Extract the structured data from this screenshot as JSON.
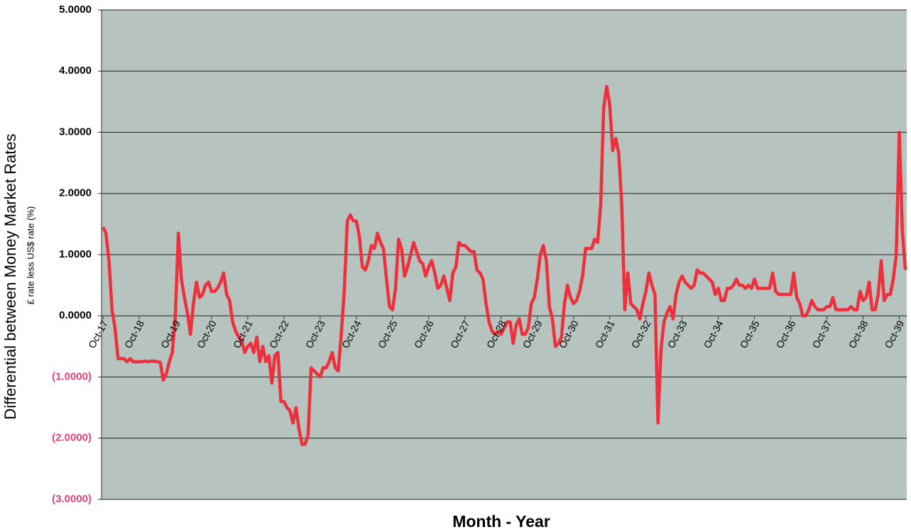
{
  "chart_data": {
    "type": "line",
    "y_axis_label": "Differential between Money Market Rates",
    "y_axis_sublabel": "£ rate less US$ rate (%)",
    "x_axis_label": "Month - Year",
    "categories": [
      "Oct-17",
      null,
      null,
      null,
      null,
      null,
      null,
      null,
      null,
      null,
      null,
      null,
      "Oct-18",
      null,
      null,
      null,
      null,
      null,
      null,
      null,
      null,
      null,
      null,
      null,
      "Oct-19",
      null,
      null,
      null,
      null,
      null,
      null,
      null,
      null,
      null,
      null,
      null,
      "Oct-20",
      null,
      null,
      null,
      null,
      null,
      null,
      null,
      null,
      null,
      null,
      null,
      "Oct-21",
      null,
      null,
      null,
      null,
      null,
      null,
      null,
      null,
      null,
      null,
      null,
      "Oct-22",
      null,
      null,
      null,
      null,
      null,
      null,
      null,
      null,
      null,
      null,
      null,
      "Oct-23",
      null,
      null,
      null,
      null,
      null,
      null,
      null,
      null,
      null,
      null,
      null,
      "Oct-24",
      null,
      null,
      null,
      null,
      null,
      null,
      null,
      null,
      null,
      null,
      null,
      "Oct-25",
      null,
      null,
      null,
      null,
      null,
      null,
      null,
      null,
      null,
      null,
      null,
      "Oct-26",
      null,
      null,
      null,
      null,
      null,
      null,
      null,
      null,
      null,
      null,
      null,
      "Oct-27",
      null,
      null,
      null,
      null,
      null,
      null,
      null,
      null,
      null,
      null,
      null,
      "Oct-28",
      null,
      null,
      null,
      null,
      null,
      null,
      null,
      null,
      null,
      null,
      null,
      "Oct-29",
      null,
      null,
      null,
      null,
      null,
      null,
      null,
      null,
      null,
      null,
      null,
      "Oct-30",
      null,
      null,
      null,
      null,
      null,
      null,
      null,
      null,
      null,
      null,
      null,
      "Oct-31",
      null,
      null,
      null,
      null,
      null,
      null,
      null,
      null,
      null,
      null,
      null,
      "Oct-32",
      null,
      null,
      null,
      null,
      null,
      null,
      null,
      null,
      null,
      null,
      null,
      "Oct-33",
      null,
      null,
      null,
      null,
      null,
      null,
      null,
      null,
      null,
      null,
      null,
      "Oct-34",
      null,
      null,
      null,
      null,
      null,
      null,
      null,
      null,
      null,
      null,
      null,
      "Oct-35",
      null,
      null,
      null,
      null,
      null,
      null,
      null,
      null,
      null,
      null,
      null,
      "Oct-36",
      null,
      null,
      null,
      null,
      null,
      null,
      null,
      null,
      null,
      null,
      null,
      "Oct-37",
      null,
      null,
      null,
      null,
      null,
      null,
      null,
      null,
      null,
      null,
      null,
      "Oct-38",
      null,
      null,
      null,
      null,
      null,
      null,
      null,
      null,
      null,
      null,
      null,
      "Oct-39",
      null,
      null
    ],
    "series": [
      {
        "name": "Differential",
        "color": "#ee2f3c",
        "values": [
          1.45,
          1.35,
          0.9,
          0.1,
          -0.2,
          -0.7,
          -0.7,
          -0.7,
          -0.75,
          -0.7,
          -0.75,
          -0.75,
          -0.75,
          -0.75,
          -0.74,
          -0.75,
          -0.74,
          -0.74,
          -0.75,
          -0.76,
          -1.05,
          -0.95,
          -0.75,
          -0.6,
          0.0,
          1.35,
          0.6,
          0.3,
          0.05,
          -0.3,
          0.2,
          0.55,
          0.3,
          0.35,
          0.5,
          0.55,
          0.4,
          0.4,
          0.45,
          0.55,
          0.7,
          0.35,
          0.25,
          -0.1,
          -0.25,
          -0.35,
          -0.4,
          -0.6,
          -0.5,
          -0.45,
          -0.6,
          -0.35,
          -0.75,
          -0.5,
          -0.75,
          -0.65,
          -1.1,
          -0.65,
          -0.6,
          -1.4,
          -1.4,
          -1.5,
          -1.55,
          -1.75,
          -1.5,
          -1.85,
          -2.1,
          -2.1,
          -1.95,
          -0.85,
          -0.9,
          -0.95,
          -1.0,
          -0.85,
          -0.85,
          -0.75,
          -0.6,
          -0.85,
          -0.9,
          -0.3,
          0.4,
          1.55,
          1.65,
          1.55,
          1.55,
          1.3,
          0.8,
          0.75,
          0.9,
          1.15,
          1.1,
          1.35,
          1.2,
          1.1,
          0.6,
          0.15,
          0.1,
          0.45,
          1.25,
          1.1,
          0.65,
          0.8,
          1.0,
          1.2,
          1.05,
          0.9,
          0.85,
          0.65,
          0.8,
          0.9,
          0.7,
          0.45,
          0.5,
          0.65,
          0.45,
          0.25,
          0.7,
          0.8,
          1.2,
          1.15,
          1.15,
          1.1,
          1.05,
          1.05,
          0.75,
          0.7,
          0.6,
          0.2,
          -0.1,
          -0.25,
          -0.3,
          -0.25,
          -0.3,
          -0.2,
          -0.1,
          -0.1,
          -0.45,
          -0.15,
          -0.05,
          -0.3,
          -0.3,
          -0.2,
          0.2,
          0.3,
          0.6,
          1.0,
          1.15,
          0.9,
          0.15,
          -0.05,
          -0.5,
          -0.45,
          -0.35,
          0.2,
          0.5,
          0.3,
          0.2,
          0.25,
          0.4,
          0.65,
          1.1,
          1.1,
          1.1,
          1.25,
          1.2,
          1.8,
          3.4,
          3.75,
          3.45,
          2.7,
          2.9,
          2.65,
          1.8,
          0.1,
          0.7,
          0.2,
          0.15,
          0.1,
          -0.05,
          0.2,
          0.4,
          0.7,
          0.5,
          0.35,
          -1.75,
          -0.55,
          -0.1,
          0.05,
          0.15,
          -0.05,
          0.35,
          0.55,
          0.65,
          0.55,
          0.5,
          0.45,
          0.5,
          0.75,
          0.7,
          0.7,
          0.65,
          0.6,
          0.55,
          0.35,
          0.45,
          0.25,
          0.25,
          0.45,
          0.45,
          0.5,
          0.6,
          0.5,
          0.5,
          0.45,
          0.5,
          0.45,
          0.6,
          0.45,
          0.45,
          0.45,
          0.45,
          0.45,
          0.7,
          0.4,
          0.35,
          0.35,
          0.35,
          0.35,
          0.35,
          0.7,
          0.3,
          0.2,
          0.0,
          0.0,
          0.1,
          0.25,
          0.15,
          0.1,
          0.1,
          0.1,
          0.15,
          0.15,
          0.3,
          0.1,
          0.1,
          0.1,
          0.1,
          0.1,
          0.15,
          0.1,
          0.1,
          0.4,
          0.25,
          0.3,
          0.55,
          0.1,
          0.1,
          0.35,
          0.9,
          0.25,
          0.35,
          0.35,
          0.6,
          1.0,
          3.0,
          1.4,
          0.75
        ]
      }
    ],
    "ylim": [
      -3,
      5
    ],
    "yticks": [
      {
        "value": -3,
        "label": "(3.0000)"
      },
      {
        "value": -2,
        "label": "(2.0000)"
      },
      {
        "value": -1,
        "label": "(1.0000)"
      },
      {
        "value": 0,
        "label": "0.0000"
      },
      {
        "value": 1,
        "label": "1.0000"
      },
      {
        "value": 2,
        "label": "2.0000"
      },
      {
        "value": 3,
        "label": "3.0000"
      },
      {
        "value": 4,
        "label": "4.0000"
      },
      {
        "value": 5,
        "label": "5.0000"
      }
    ],
    "grid": true,
    "background": "#b7c3bf"
  }
}
